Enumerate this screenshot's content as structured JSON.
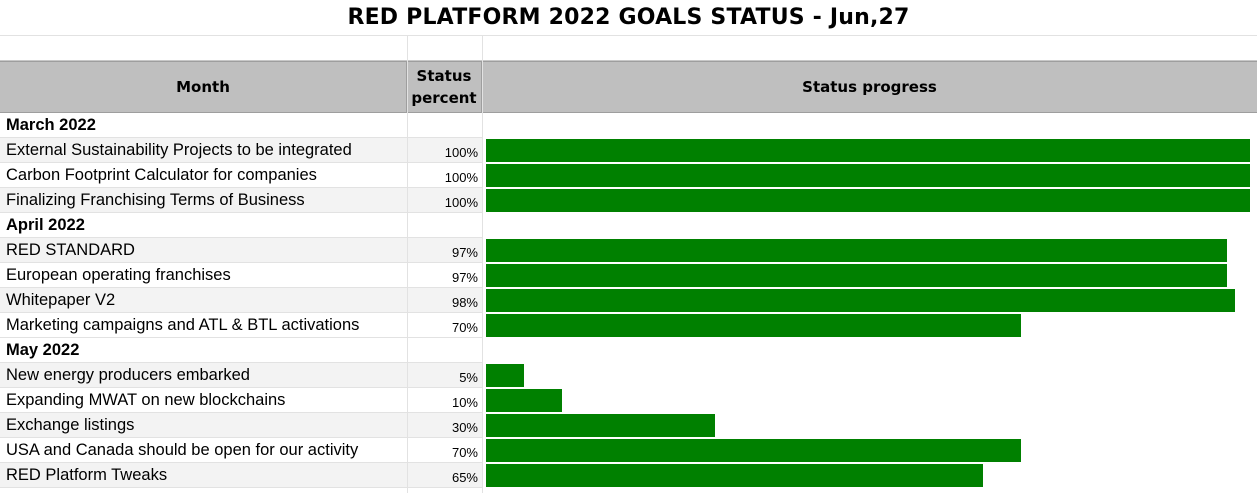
{
  "title": "RED PLATFORM 2022 GOALS STATUS - Jun,27",
  "headers": {
    "month": "Month",
    "percent": "Status\npercent",
    "progress": "Status progress"
  },
  "colors": {
    "bar": "#008000",
    "header_bg": "#bfbfbf"
  },
  "chart_data": {
    "type": "bar",
    "title": "RED PLATFORM 2022 GOALS STATUS - Jun,27",
    "xlim": [
      0,
      100
    ],
    "groups": [
      {
        "label": "March 2022",
        "items": [
          {
            "label": "External Sustainability Projects to be integrated",
            "value": 100,
            "display": "100%"
          },
          {
            "label": "Carbon Footprint Calculator for companies",
            "value": 100,
            "display": "100%"
          },
          {
            "label": "Finalizing Franchising Terms of Business",
            "value": 100,
            "display": "100%"
          }
        ]
      },
      {
        "label": "April 2022",
        "items": [
          {
            "label": "RED STANDARD",
            "value": 97,
            "display": "97%"
          },
          {
            "label": "European operating franchises",
            "value": 97,
            "display": "97%"
          },
          {
            "label": "Whitepaper V2",
            "value": 98,
            "display": "98%"
          },
          {
            "label": "Marketing campaigns and ATL & BTL activations",
            "value": 70,
            "display": "70%"
          }
        ]
      },
      {
        "label": "May 2022",
        "items": [
          {
            "label": "New energy producers embarked",
            "value": 5,
            "display": "5%"
          },
          {
            "label": "Expanding MWAT on new blockchains",
            "value": 10,
            "display": "10%"
          },
          {
            "label": "Exchange listings",
            "value": 30,
            "display": "30%"
          },
          {
            "label": "USA and Canada should be open for our activity",
            "value": 70,
            "display": "70%"
          },
          {
            "label": "RED Platform Tweaks",
            "value": 65,
            "display": "65%"
          }
        ]
      }
    ]
  }
}
